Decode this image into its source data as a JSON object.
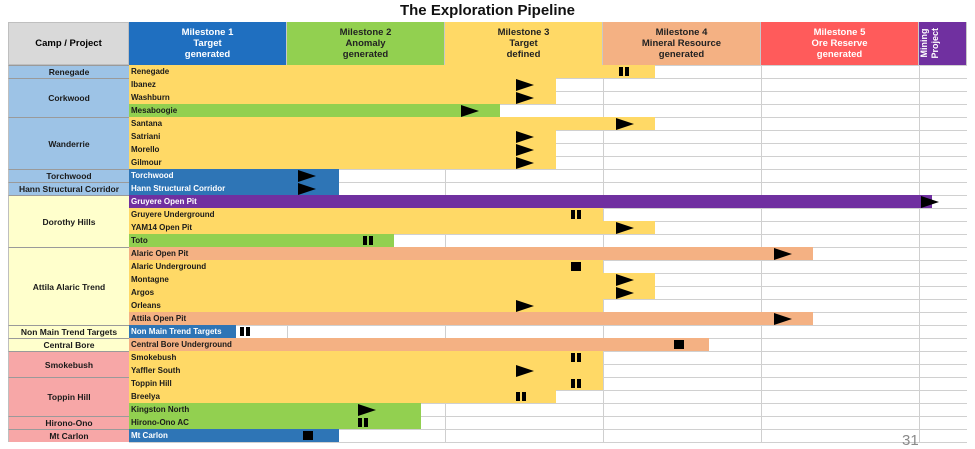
{
  "title": "The Exploration Pipeline",
  "camp_header": "Camp / Project",
  "page_number": "31",
  "colors": {
    "m1": "#1f6fc0",
    "m2": "#92d050",
    "m3": "#ffd966",
    "m4": "#f4b183",
    "m5": "#ff5b5b",
    "m6": "#7030a0",
    "bar_blue": "#2e75b6",
    "bar_purple": "#7030a0",
    "camp_blue": "#9dc3e6",
    "camp_yellow": "#ffffcc",
    "camp_pink": "#f7a7a7"
  },
  "milestones": [
    {
      "id": "m1",
      "lines": [
        "Milestone 1",
        "Target",
        "generated"
      ]
    },
    {
      "id": "m2",
      "lines": [
        "Milestone 2",
        "Anomaly",
        "generated"
      ]
    },
    {
      "id": "m3",
      "lines": [
        "Milestone 3",
        "Target",
        "defined"
      ]
    },
    {
      "id": "m4",
      "lines": [
        "Milestone 4",
        "Mineral Resource",
        "generated"
      ]
    },
    {
      "id": "m5",
      "lines": [
        "Milestone 5",
        "Ore Reserve",
        "generated"
      ]
    },
    {
      "id": "m6",
      "lines": [
        "Mining",
        "Project"
      ]
    }
  ],
  "chart_data": {
    "type": "bar",
    "x_axis": "milestone progress (0 = start of Milestone 1, 5 = Mining Project)",
    "camps": [
      {
        "name": "Renegade",
        "color": "camp_blue",
        "rows": 1
      },
      {
        "name": "Corkwood",
        "color": "camp_blue",
        "rows": 3
      },
      {
        "name": "Wanderrie",
        "color": "camp_blue",
        "rows": 4
      },
      {
        "name": "Torchwood",
        "color": "camp_blue",
        "rows": 1
      },
      {
        "name": "Hann Structural Corridor",
        "color": "camp_blue",
        "rows": 1
      },
      {
        "name": "Dorothy Hills",
        "color": "camp_yellow",
        "rows": 4
      },
      {
        "name": "Attila Alaric Trend",
        "color": "camp_yellow",
        "rows": 6
      },
      {
        "name": "Non Main Trend Targets",
        "color": "camp_yellow",
        "rows": 1
      },
      {
        "name": "Central Bore",
        "color": "camp_yellow",
        "rows": 1
      },
      {
        "name": "Smokebush",
        "color": "camp_pink",
        "rows": 2
      },
      {
        "name": "Toppin Hill",
        "color": "camp_pink",
        "rows": 3
      },
      {
        "name": "Hirono-Ono",
        "color": "camp_pink",
        "rows": 1
      },
      {
        "name": "Mt Carlon",
        "color": "camp_pink",
        "rows": 1
      }
    ],
    "projects": [
      {
        "name": "Renegade",
        "progress": 3.33,
        "color": "m3",
        "status": "pause",
        "marker": 3.1
      },
      {
        "name": "Ibanez",
        "progress": 2.7,
        "color": "m3",
        "status": "advance",
        "marker": 2.45
      },
      {
        "name": "Washburn",
        "progress": 2.7,
        "color": "m3",
        "status": "advance",
        "marker": 2.45
      },
      {
        "name": "Mesaboogie",
        "progress": 2.35,
        "color": "m2",
        "status": "advance",
        "marker": 2.1
      },
      {
        "name": "Santana",
        "progress": 3.33,
        "color": "m3",
        "status": "advance",
        "marker": 3.08
      },
      {
        "name": "Satriani",
        "progress": 2.7,
        "color": "m3",
        "status": "advance",
        "marker": 2.45
      },
      {
        "name": "Morello",
        "progress": 2.7,
        "color": "m3",
        "status": "advance",
        "marker": 2.45
      },
      {
        "name": "Gilmour",
        "progress": 2.7,
        "color": "m3",
        "status": "advance",
        "marker": 2.45
      },
      {
        "name": "Torchwood",
        "progress": 1.33,
        "color": "bar_blue",
        "status": "advance",
        "marker": 1.07
      },
      {
        "name": "Hann Structural Corridor",
        "progress": 1.33,
        "color": "bar_blue",
        "status": "advance",
        "marker": 1.07
      },
      {
        "name": "Gruyere Open Pit",
        "progress": 5.3,
        "color": "bar_purple",
        "status": "advance",
        "marker": 5.05
      },
      {
        "name": "Gruyere Underground",
        "progress": 3.0,
        "color": "m3",
        "status": "pause",
        "marker": 2.8
      },
      {
        "name": "YAM14 Open Pit",
        "progress": 3.33,
        "color": "m3",
        "status": "advance",
        "marker": 3.08
      },
      {
        "name": "Toto",
        "progress": 1.68,
        "color": "m2",
        "status": "pause",
        "marker": 1.48
      },
      {
        "name": "Alaric Open Pit",
        "progress": 4.33,
        "color": "m4",
        "status": "advance",
        "marker": 4.08
      },
      {
        "name": "Alaric Underground",
        "progress": 3.0,
        "color": "m3",
        "status": "stop",
        "marker": 2.8
      },
      {
        "name": "Montagne",
        "progress": 3.33,
        "color": "m3",
        "status": "advance",
        "marker": 3.08
      },
      {
        "name": "Argos",
        "progress": 3.33,
        "color": "m3",
        "status": "advance",
        "marker": 3.08
      },
      {
        "name": "Orleans",
        "progress": 3.0,
        "color": "m3",
        "status": "advance",
        "marker": 2.45
      },
      {
        "name": "Attila Open Pit",
        "progress": 4.33,
        "color": "m4",
        "status": "advance",
        "marker": 4.08
      },
      {
        "name": "Non Main Trend Targets",
        "progress": 0.68,
        "color": "bar_blue",
        "status": "pause",
        "marker": 0.7
      },
      {
        "name": "Central Bore Underground",
        "progress": 3.67,
        "color": "m4",
        "status": "stop",
        "marker": 3.45
      },
      {
        "name": "Smokebush",
        "progress": 3.0,
        "color": "m3",
        "status": "pause",
        "marker": 2.8
      },
      {
        "name": "Yaffler South",
        "progress": 3.0,
        "color": "m3",
        "status": "advance",
        "marker": 2.45
      },
      {
        "name": "Toppin Hill",
        "progress": 3.0,
        "color": "m3",
        "status": "pause",
        "marker": 2.8
      },
      {
        "name": "Breelya",
        "progress": 2.7,
        "color": "m3",
        "status": "pause",
        "marker": 2.45
      },
      {
        "name": "Kingston North",
        "progress": 1.85,
        "color": "m2",
        "status": "advance",
        "marker": 1.45
      },
      {
        "name": "Hirono-Ono AC",
        "progress": 1.85,
        "color": "m2",
        "status": "pause",
        "marker": 1.45
      },
      {
        "name": "Mt Carlon",
        "progress": 1.33,
        "color": "bar_blue",
        "status": "stop",
        "marker": 1.1
      }
    ]
  }
}
